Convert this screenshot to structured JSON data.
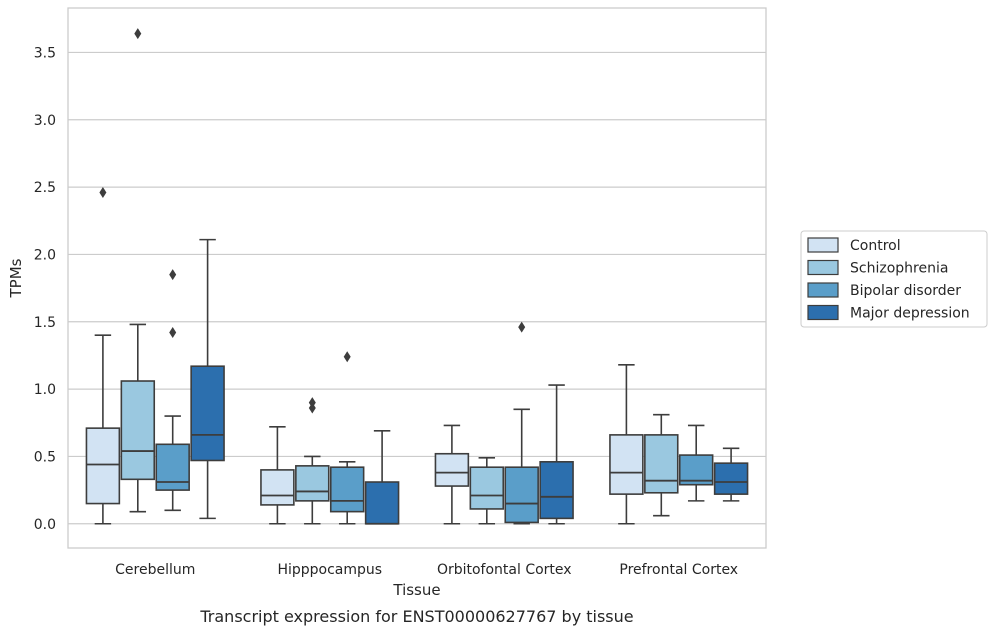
{
  "chart_data": {
    "type": "box",
    "xlabel": "Tissue",
    "ylabel": "TPMs",
    "caption": "Transcript expression for ENST00000627767 by tissue",
    "categories": [
      "Cerebellum",
      "Hipppocampus",
      "Orbitofontal Cortex",
      "Prefrontal Cortex"
    ],
    "ylim": [
      -0.18,
      3.83
    ],
    "yticks": [
      0.0,
      0.5,
      1.0,
      1.5,
      2.0,
      2.5,
      3.0,
      3.5
    ],
    "ytick_labels": [
      "0.0",
      "0.5",
      "1.0",
      "1.5",
      "2.0",
      "2.5",
      "3.0",
      "3.5"
    ],
    "grid": "horizontal",
    "legend_position": "right",
    "series": [
      {
        "name": "Control",
        "color": "#d2e3f3",
        "boxes": [
          {
            "min": 0.0,
            "q1": 0.15,
            "median": 0.44,
            "q3": 0.71,
            "max": 1.4,
            "outliers": [
              2.46
            ]
          },
          {
            "min": 0.0,
            "q1": 0.14,
            "median": 0.21,
            "q3": 0.4,
            "max": 0.72,
            "outliers": []
          },
          {
            "min": 0.0,
            "q1": 0.28,
            "median": 0.38,
            "q3": 0.52,
            "max": 0.73,
            "outliers": []
          },
          {
            "min": 0.0,
            "q1": 0.22,
            "median": 0.38,
            "q3": 0.66,
            "max": 1.18,
            "outliers": []
          }
        ]
      },
      {
        "name": "Schizophrenia",
        "color": "#9ac8e0",
        "boxes": [
          {
            "min": 0.09,
            "q1": 0.33,
            "median": 0.54,
            "q3": 1.06,
            "max": 1.48,
            "outliers": [
              3.64
            ]
          },
          {
            "min": 0.0,
            "q1": 0.17,
            "median": 0.24,
            "q3": 0.43,
            "max": 0.5,
            "outliers": [
              0.86,
              0.9
            ]
          },
          {
            "min": 0.0,
            "q1": 0.11,
            "median": 0.21,
            "q3": 0.42,
            "max": 0.49,
            "outliers": []
          },
          {
            "min": 0.06,
            "q1": 0.23,
            "median": 0.32,
            "q3": 0.66,
            "max": 0.81,
            "outliers": []
          }
        ]
      },
      {
        "name": "Bipolar disorder",
        "color": "#5a9ec9",
        "boxes": [
          {
            "min": 0.1,
            "q1": 0.25,
            "median": 0.31,
            "q3": 0.59,
            "max": 0.8,
            "outliers": [
              1.42,
              1.85
            ]
          },
          {
            "min": 0.0,
            "q1": 0.09,
            "median": 0.17,
            "q3": 0.42,
            "max": 0.46,
            "outliers": [
              1.24
            ]
          },
          {
            "min": 0.0,
            "q1": 0.01,
            "median": 0.15,
            "q3": 0.42,
            "max": 0.85,
            "outliers": [
              1.46
            ]
          },
          {
            "min": 0.17,
            "q1": 0.29,
            "median": 0.32,
            "q3": 0.51,
            "max": 0.73,
            "outliers": []
          }
        ]
      },
      {
        "name": "Major depression",
        "color": "#2c6fae",
        "boxes": [
          {
            "min": 0.04,
            "q1": 0.47,
            "median": 0.66,
            "q3": 1.17,
            "max": 2.11,
            "outliers": []
          },
          {
            "min": 0.0,
            "q1": 0.0,
            "median": 0.0,
            "q3": 0.31,
            "max": 0.69,
            "outliers": []
          },
          {
            "min": 0.0,
            "q1": 0.04,
            "median": 0.2,
            "q3": 0.46,
            "max": 1.03,
            "outliers": []
          },
          {
            "min": 0.17,
            "q1": 0.22,
            "median": 0.31,
            "q3": 0.45,
            "max": 0.56,
            "outliers": []
          }
        ]
      }
    ]
  }
}
